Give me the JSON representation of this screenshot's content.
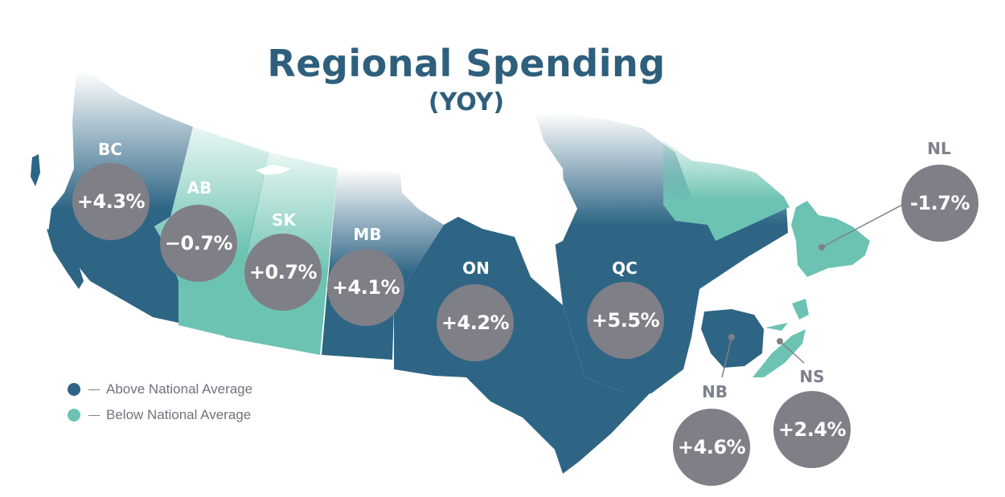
{
  "header": {
    "title": "Regional Spending",
    "subtitle": "(YOY)"
  },
  "colors": {
    "above": "#2e6585",
    "below": "#6cc3b3",
    "bubble": "#7f7f87",
    "title": "#2e5f7c"
  },
  "legend": {
    "above": "Above National Average",
    "below": "Below National Average"
  },
  "regions": {
    "BC": {
      "abbr": "BC",
      "value": "+4.3%",
      "status": "above"
    },
    "AB": {
      "abbr": "AB",
      "value": "−0.7%",
      "status": "below"
    },
    "SK": {
      "abbr": "SK",
      "value": "+0.7%",
      "status": "below"
    },
    "MB": {
      "abbr": "MB",
      "value": "+4.1%",
      "status": "above"
    },
    "ON": {
      "abbr": "ON",
      "value": "+4.2%",
      "status": "above"
    },
    "QC": {
      "abbr": "QC",
      "value": "+5.5%",
      "status": "above"
    },
    "NL": {
      "abbr": "NL",
      "value": "-1.7%",
      "status": "below"
    },
    "NB": {
      "abbr": "NB",
      "value": "+4.6%",
      "status": "above"
    },
    "NS": {
      "abbr": "NS",
      "value": "+2.4%",
      "status": "below"
    }
  }
}
